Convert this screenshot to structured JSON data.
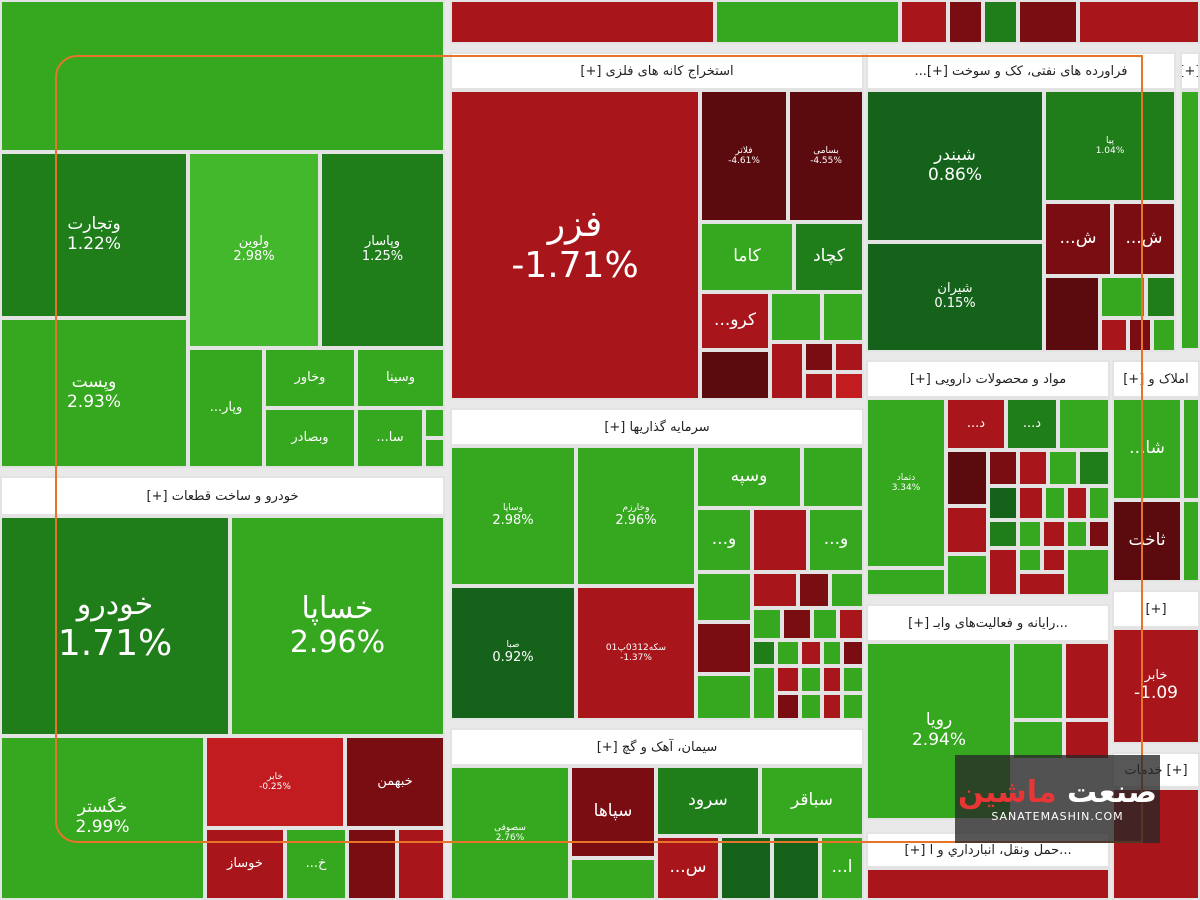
{
  "sectors": {
    "top_left": {
      "header": ""
    },
    "mining": {
      "header": "استخراج کانه های فلزی [+]"
    },
    "refining": {
      "header": "فراورده های نفتی، کک و سوخت [+]..."
    },
    "pharma": {
      "header": "مواد و محصولات دارویی [+]"
    },
    "realestate": {
      "header": "املاک و [+]"
    },
    "investment": {
      "header": "سرمایه گذاریها [+]"
    },
    "auto": {
      "header": "خودرو و ساخت قطعات [+]"
    },
    "cement": {
      "header": "سیمان، آهک و گچ [+]"
    },
    "computer": {
      "header": "...رایانه و فعالیت‌های وابـ [+]"
    },
    "services": {
      "header": "[+] خدمات"
    },
    "transport": {
      "header": "...حمل ونقل، انبارداري و ا [+]"
    },
    "right_top": {
      "header": "[+]"
    },
    "right_mid": {
      "header": "[+]"
    }
  },
  "tiles": {
    "vtejarat": {
      "name": "وتجارت",
      "pct": "1.22%"
    },
    "valvin": {
      "name": "ولوین",
      "pct": "2.98%"
    },
    "vpasar": {
      "name": "وپاسار",
      "pct": "1.25%"
    },
    "vpost": {
      "name": "وپست",
      "pct": "2.93%"
    },
    "vpar": {
      "name": "...وپار"
    },
    "vkhavar": {
      "name": "وخاور"
    },
    "vsina": {
      "name": "وسینا"
    },
    "vbsader": {
      "name": "وبصادر"
    },
    "sa": {
      "name": "...سا"
    },
    "khodro": {
      "name": "خودرو",
      "pct": "1.71%"
    },
    "khsapa": {
      "name": "خساپا",
      "pct": "2.96%"
    },
    "khgostar": {
      "name": "خگستر",
      "pct": "2.99%"
    },
    "khabar": {
      "name": "خابر",
      "pct": "-0.25%"
    },
    "khbahman": {
      "name": "خبهمن"
    },
    "kh": {
      "name": "...خ"
    },
    "khosaz": {
      "name": "خوساز"
    },
    "fezar": {
      "name": "فزر",
      "pct": "-1.71%"
    },
    "kalat": {
      "name": "فلاتر",
      "pct": "-4.61%"
    },
    "bsami": {
      "name": "بسامی",
      "pct": "-4.55%"
    },
    "kama": {
      "name": "کاما"
    },
    "kchad": {
      "name": "کچاد"
    },
    "kro": {
      "name": "...کرو"
    },
    "shbandar": {
      "name": "شبندر",
      "pct": "0.86%"
    },
    "shiran": {
      "name": "شیران",
      "pct": "0.15%"
    },
    "pia": {
      "name": "پیا",
      "pct": "1.04%"
    },
    "sh1": {
      "name": "...ش"
    },
    "sh2": {
      "name": "...ش"
    },
    "vsapa": {
      "name": "وساپا",
      "pct": "2.98%"
    },
    "vkharazm": {
      "name": "وخارزم",
      "pct": "2.96%"
    },
    "vsepeh": {
      "name": "وسپه"
    },
    "vo1": {
      "name": "...و"
    },
    "vo2": {
      "name": "...و"
    },
    "saba": {
      "name": "صبا",
      "pct": "0.92%"
    },
    "sekeh": {
      "name": "سکه0312پ01",
      "pct": "-1.37%"
    },
    "ddast": {
      "name": "دتماد",
      "pct": "3.34%"
    },
    "d1": {
      "name": "...د"
    },
    "d2": {
      "name": "...د"
    },
    "sheh": {
      "name": "...شا"
    },
    "sakht": {
      "name": "ثاخت"
    },
    "khaber2": {
      "name": "خابر",
      "pct": "-1.09"
    },
    "royia": {
      "name": "رویا",
      "pct": "2.94%"
    },
    "sofa": {
      "name": "سصوفی",
      "pct": "2.76%"
    },
    "siaha": {
      "name": "سپاها"
    },
    "sarod": {
      "name": "سرود"
    },
    "sbaqer": {
      "name": "سباقر"
    },
    "s1": {
      "name": "...س"
    },
    "l1": {
      "name": "...ا"
    }
  },
  "watermark": {
    "logo_main": "صنعت",
    "logo_accent": "ماشین",
    "url": "SANATEMASHIN.COM"
  },
  "colors": {
    "frame": "#e8742a"
  }
}
